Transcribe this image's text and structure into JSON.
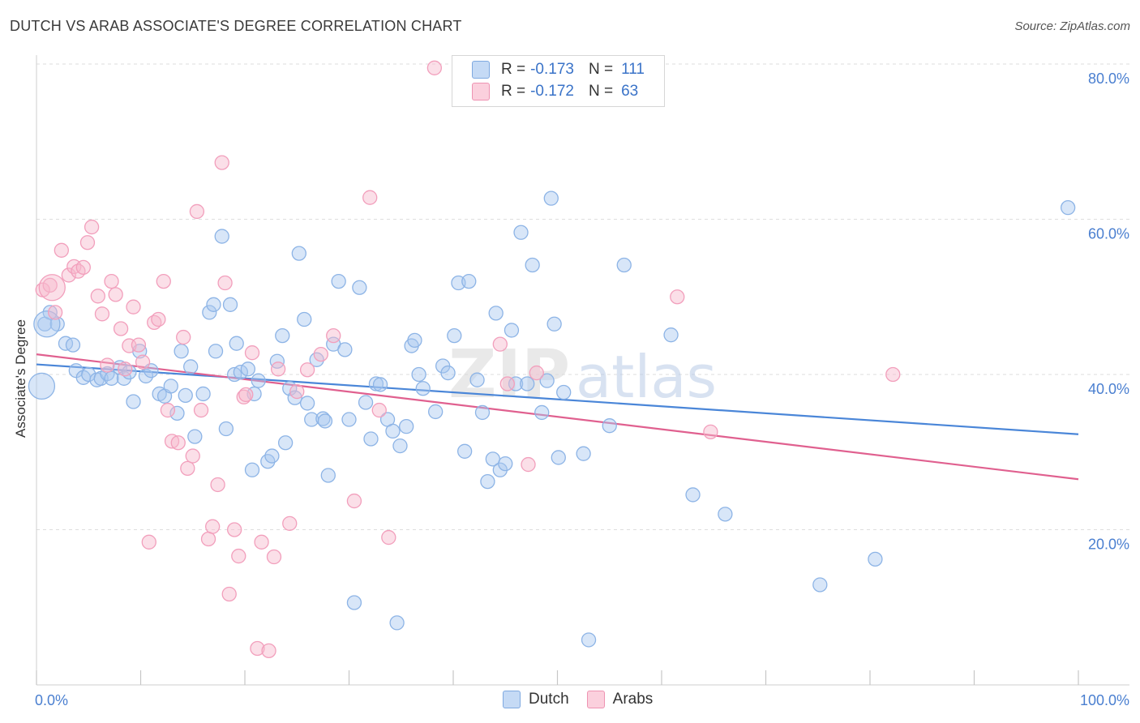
{
  "header": {
    "title": "DUTCH VS ARAB ASSOCIATE'S DEGREE CORRELATION CHART",
    "source": "Source: ZipAtlas.com"
  },
  "watermark": "ZIPatlas",
  "legend_top": {
    "rows": [
      {
        "r_label": "R =",
        "r_value": "-0.173",
        "n_label": "N =",
        "n_value": "111",
        "color": "#a9c8f0"
      },
      {
        "r_label": "R =",
        "r_value": "-0.172",
        "n_label": "N =",
        "n_value": "63",
        "color": "#f7b8cc"
      }
    ]
  },
  "legend_bottom": {
    "items": [
      {
        "label": "Dutch",
        "color": "#a9c8f0"
      },
      {
        "label": "Arabs",
        "color": "#f7b8cc"
      }
    ]
  },
  "chart_data": {
    "type": "scatter",
    "title": "DUTCH VS ARAB ASSOCIATE'S DEGREE CORRELATION CHART",
    "xlabel": "",
    "ylabel": "Associate's Degree",
    "xlim": [
      0,
      100
    ],
    "ylim": [
      0,
      80
    ],
    "x_tick_labels": [
      "0.0%",
      "100.0%"
    ],
    "y_ticks": [
      20,
      40,
      60,
      80
    ],
    "y_tick_labels": [
      "20.0%",
      "40.0%",
      "60.0%",
      "80.0%"
    ],
    "grid": true,
    "legend_position": "top-center",
    "series": [
      {
        "name": "Dutch",
        "color": "#4a86d8",
        "fill": "#a9c8f0",
        "trend": {
          "x0": 0,
          "y0": 41.3,
          "x1": 100,
          "y1": 32.3
        },
        "points": [
          [
            0.8,
            46.5
          ],
          [
            1.3,
            48
          ],
          [
            2,
            46.5
          ],
          [
            2.8,
            44
          ],
          [
            3.5,
            43.8
          ],
          [
            3.8,
            40.5
          ],
          [
            4.5,
            39.6
          ],
          [
            5,
            40
          ],
          [
            5.8,
            39.3
          ],
          [
            6.2,
            39.5
          ],
          [
            6.8,
            40.1
          ],
          [
            7.2,
            39.5
          ],
          [
            8,
            40.9
          ],
          [
            8.4,
            39.5
          ],
          [
            8.9,
            40.3
          ],
          [
            9.3,
            36.5
          ],
          [
            9.9,
            43
          ],
          [
            10.5,
            39.8
          ],
          [
            11,
            40.5
          ],
          [
            11.8,
            37.5
          ],
          [
            12.3,
            37.2
          ],
          [
            12.9,
            38.5
          ],
          [
            13.5,
            35
          ],
          [
            13.9,
            43
          ],
          [
            14.3,
            37.3
          ],
          [
            14.8,
            41
          ],
          [
            15.2,
            32
          ],
          [
            16,
            37.5
          ],
          [
            16.6,
            48
          ],
          [
            17,
            49
          ],
          [
            17.2,
            43
          ],
          [
            17.8,
            57.8
          ],
          [
            18.2,
            33
          ],
          [
            18.6,
            49
          ],
          [
            19,
            40
          ],
          [
            19.2,
            44
          ],
          [
            19.6,
            40.3
          ],
          [
            20.3,
            40.7
          ],
          [
            20.7,
            27.7
          ],
          [
            20.9,
            37.5
          ],
          [
            21.3,
            39.2
          ],
          [
            22.2,
            28.8
          ],
          [
            22.6,
            29.5
          ],
          [
            23.1,
            41.7
          ],
          [
            23.6,
            45
          ],
          [
            23.9,
            31.2
          ],
          [
            24.3,
            38.2
          ],
          [
            24.8,
            37
          ],
          [
            25.2,
            55.6
          ],
          [
            25.7,
            47.1
          ],
          [
            26,
            36.3
          ],
          [
            26.4,
            34.2
          ],
          [
            26.9,
            41.9
          ],
          [
            27.5,
            34.3
          ],
          [
            27.7,
            34
          ],
          [
            28,
            27
          ],
          [
            28.5,
            43.9
          ],
          [
            29,
            52
          ],
          [
            29.6,
            43.2
          ],
          [
            30,
            34.2
          ],
          [
            30.5,
            10.6
          ],
          [
            31,
            51.2
          ],
          [
            31.6,
            36.4
          ],
          [
            32.1,
            31.7
          ],
          [
            32.6,
            38.8
          ],
          [
            33,
            38.7
          ],
          [
            33.7,
            34.2
          ],
          [
            34.2,
            32.7
          ],
          [
            34.6,
            8
          ],
          [
            34.9,
            30.8
          ],
          [
            35.5,
            33.3
          ],
          [
            36,
            43.7
          ],
          [
            36.3,
            44.4
          ],
          [
            36.7,
            40
          ],
          [
            37.1,
            38.2
          ],
          [
            38.3,
            35.2
          ],
          [
            39,
            41.1
          ],
          [
            39.5,
            40.2
          ],
          [
            40.1,
            45
          ],
          [
            40.5,
            51.8
          ],
          [
            41.1,
            30.1
          ],
          [
            41.5,
            52
          ],
          [
            42.3,
            39.3
          ],
          [
            42.8,
            35.1
          ],
          [
            43.3,
            26.2
          ],
          [
            43.8,
            29.1
          ],
          [
            44.1,
            47.9
          ],
          [
            44.5,
            27.7
          ],
          [
            45,
            28.5
          ],
          [
            45.6,
            45.7
          ],
          [
            46,
            38.8
          ],
          [
            46.5,
            58.3
          ],
          [
            47.1,
            38.8
          ],
          [
            47.6,
            54.1
          ],
          [
            48.5,
            35.1
          ],
          [
            49,
            39.2
          ],
          [
            49.4,
            62.7
          ],
          [
            49.7,
            46.5
          ],
          [
            50.1,
            29.3
          ],
          [
            50.6,
            37.7
          ],
          [
            52.5,
            29.8
          ],
          [
            53,
            5.8
          ],
          [
            55,
            33.4
          ],
          [
            56.4,
            54.1
          ],
          [
            60.9,
            45.1
          ],
          [
            63,
            24.5
          ],
          [
            66.1,
            22
          ],
          [
            75.2,
            12.9
          ],
          [
            80.5,
            16.2
          ],
          [
            99,
            61.5
          ]
        ],
        "large_points": [
          [
            0.5,
            38.5
          ],
          [
            1,
            46.5
          ]
        ]
      },
      {
        "name": "Arabs",
        "color": "#e0608f",
        "fill": "#f7b8cc",
        "trend": {
          "x0": 0,
          "y0": 42.6,
          "x1": 100,
          "y1": 26.5
        },
        "points": [
          [
            0.6,
            50.9
          ],
          [
            1.3,
            51.5
          ],
          [
            1.8,
            48
          ],
          [
            2.4,
            56
          ],
          [
            3.1,
            52.8
          ],
          [
            3.6,
            53.9
          ],
          [
            4,
            53.3
          ],
          [
            4.5,
            53.8
          ],
          [
            4.9,
            57
          ],
          [
            5.3,
            59
          ],
          [
            5.9,
            50.1
          ],
          [
            6.3,
            47.8
          ],
          [
            6.8,
            41.2
          ],
          [
            7.2,
            52
          ],
          [
            7.6,
            50.3
          ],
          [
            8.1,
            45.9
          ],
          [
            8.5,
            40.7
          ],
          [
            8.9,
            43.7
          ],
          [
            9.3,
            48.7
          ],
          [
            9.8,
            43.8
          ],
          [
            10.2,
            41.6
          ],
          [
            10.8,
            18.4
          ],
          [
            11.3,
            46.7
          ],
          [
            11.7,
            47.1
          ],
          [
            12.2,
            52
          ],
          [
            12.6,
            35.4
          ],
          [
            13,
            31.4
          ],
          [
            13.6,
            31.2
          ],
          [
            14.1,
            44.8
          ],
          [
            14.5,
            27.9
          ],
          [
            15,
            29.5
          ],
          [
            15.4,
            61
          ],
          [
            15.8,
            35.4
          ],
          [
            16.5,
            18.8
          ],
          [
            16.9,
            20.4
          ],
          [
            17.4,
            25.8
          ],
          [
            17.8,
            67.3
          ],
          [
            18.1,
            51.8
          ],
          [
            18.5,
            11.7
          ],
          [
            19,
            20
          ],
          [
            19.4,
            16.6
          ],
          [
            19.9,
            37.1
          ],
          [
            20.1,
            37.4
          ],
          [
            20.7,
            42.8
          ],
          [
            21.2,
            4.7
          ],
          [
            21.6,
            18.4
          ],
          [
            22.3,
            4.4
          ],
          [
            22.8,
            16.5
          ],
          [
            23.2,
            40.7
          ],
          [
            24.3,
            20.8
          ],
          [
            25,
            37.8
          ],
          [
            26,
            40.6
          ],
          [
            27.3,
            42.6
          ],
          [
            28.5,
            45
          ],
          [
            30.5,
            23.7
          ],
          [
            32,
            62.8
          ],
          [
            32.9,
            35.4
          ],
          [
            33.8,
            19
          ],
          [
            38.2,
            79.5
          ],
          [
            44.5,
            43.9
          ],
          [
            45.2,
            38.8
          ],
          [
            47.2,
            28.4
          ],
          [
            48,
            40.2
          ],
          [
            61.5,
            50
          ],
          [
            64.7,
            32.6
          ],
          [
            82.2,
            40
          ]
        ],
        "large_points": [
          [
            1.5,
            51.2
          ]
        ]
      }
    ]
  }
}
